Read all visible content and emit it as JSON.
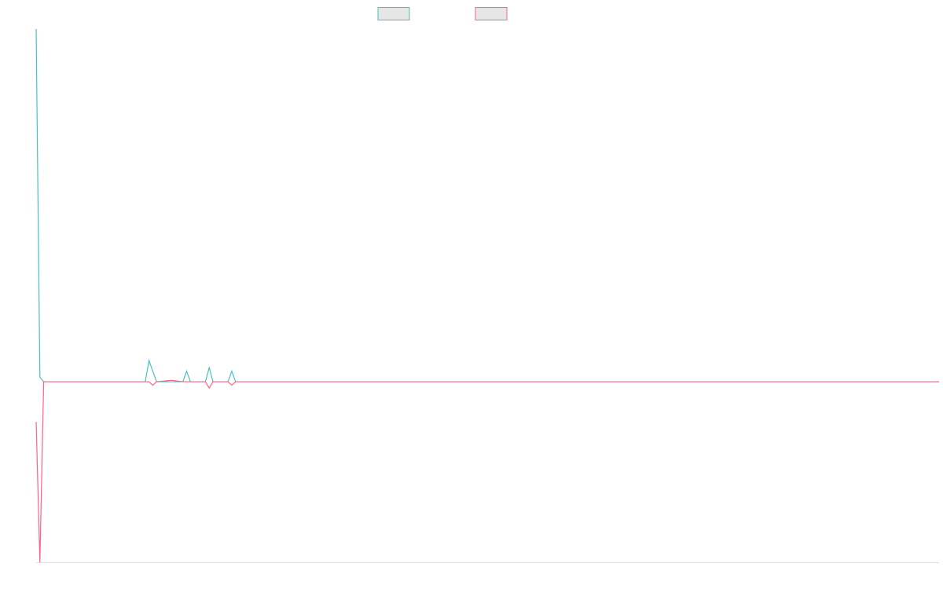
{
  "chart_data": {
    "type": "line",
    "x": [
      0,
      1,
      2,
      29,
      30,
      31,
      32,
      36,
      39,
      40,
      41,
      45,
      46,
      47,
      51,
      52,
      53,
      240
    ],
    "xlim": [
      0,
      240
    ],
    "ylim": [
      -51.2,
      100
    ],
    "grid": false,
    "legend": "top",
    "series": [
      {
        "color": "#4bc0c0",
        "values": [
          100,
          1.3,
          0,
          0,
          6,
          3,
          0,
          0,
          0,
          3,
          0,
          0,
          4,
          0,
          0,
          3,
          0,
          0
        ]
      },
      {
        "color": "#ff6384",
        "values": [
          -11.4,
          -51.2,
          0,
          0,
          0,
          -1,
          0,
          0.4,
          0,
          0,
          0,
          0,
          -1.8,
          0,
          0,
          -1,
          0,
          0
        ]
      }
    ]
  }
}
